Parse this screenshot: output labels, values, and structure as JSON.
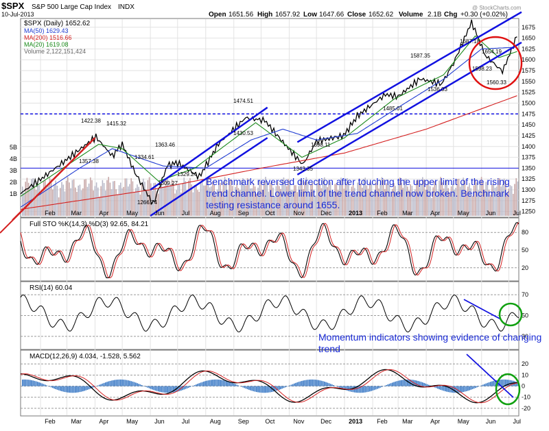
{
  "header": {
    "symbol": "$SPX",
    "name": "S&P 500 Large Cap Index",
    "exchange": "INDX",
    "date": "10-Jul-2013",
    "open_label": "Open",
    "open": "1651.56",
    "high_label": "High",
    "high": "1657.92",
    "low_label": "Low",
    "low": "1647.66",
    "close_label": "Close",
    "close": "1652.62",
    "volume_label": "Volume",
    "volume": "2.1B",
    "chg_label": "Chg",
    "chg": "+0.30 (+0.02%)",
    "watermark": "@ StockCharts.com"
  },
  "legend": {
    "main": "$SPX (Daily) 1652.62",
    "ma50": "MA(50) 1629.43",
    "ma200": "MA(200) 1516.66",
    "ma20": "MA(20) 1619.08",
    "volume": "Volume 2,122,151,424"
  },
  "annotations": {
    "benchmark": "Benchmark reversed direction after touching the upper limit of the rising trend channel. Lower limit of the trend channel now broken.   Benchmark testing resistance around 1655.",
    "momentum": "Momentum indicators showing evidence of changing trend"
  },
  "colors": {
    "price": "#000000",
    "ma50": "#1f3bd1",
    "ma200": "#d42020",
    "ma20": "#1a8a1a",
    "trend": "#1111e0",
    "circle_red": "#e01010",
    "circle_green": "#10a010",
    "vol_up": "#c8a8a8",
    "vol_down": "#b8b8c8",
    "grid": "#e2e2e2",
    "macd_hist": "#3b7ac6"
  },
  "chart_data": [
    {
      "type": "line",
      "title": "$SPX (Daily) 1652.62",
      "x_ticks": [
        "Feb",
        "Mar",
        "Apr",
        "May",
        "Jun",
        "Jul",
        "Aug",
        "Sep",
        "Oct",
        "Nov",
        "Dec",
        "2013",
        "Feb",
        "Mar",
        "Apr",
        "May",
        "Jun",
        "Jul"
      ],
      "y_ticks": [
        1250,
        1275,
        1300,
        1325,
        1350,
        1375,
        1400,
        1425,
        1450,
        1475,
        1500,
        1525,
        1550,
        1575,
        1600,
        1625,
        1650,
        1675
      ],
      "ylim": [
        1240,
        1692
      ],
      "volume_ticks": [
        "1B",
        "2B",
        "3B",
        "4B",
        "5B"
      ],
      "price_labels": [
        "1422.38",
        "1415.32",
        "1357.38",
        "1334.61",
        "1363.46",
        "1309.27",
        "1266.74",
        "1329.24",
        "1474.51",
        "1430.53",
        "1343.35",
        "1398.11",
        "1485.01",
        "1587.35",
        "1536.03",
        "1687.18",
        "1654.19",
        "1598.23",
        "1560.33"
      ],
      "series": [
        {
          "name": "$SPX",
          "dates": [
            "2012-01-10",
            "2012-02-01",
            "2012-03-01",
            "2012-04-02",
            "2012-04-20",
            "2012-05-01",
            "2012-05-15",
            "2012-06-04",
            "2012-06-20",
            "2012-07-01",
            "2012-07-25",
            "2012-08-15",
            "2012-09-14",
            "2012-10-05",
            "2012-10-25",
            "2012-11-16",
            "2012-12-01",
            "2012-12-31",
            "2013-01-15",
            "2013-02-15",
            "2013-03-01",
            "2013-03-25",
            "2013-04-18",
            "2013-05-01",
            "2013-05-21",
            "2013-06-05",
            "2013-06-24",
            "2013-07-10"
          ],
          "values": [
            1292,
            1324,
            1370,
            1422,
            1378,
            1406,
            1340,
            1267,
            1357,
            1362,
            1330,
            1406,
            1466,
            1460,
            1410,
            1358,
            1412,
            1425,
            1470,
            1520,
            1515,
            1556,
            1544,
            1592,
            1687,
            1610,
            1573,
            1653
          ]
        },
        {
          "name": "MA(50)",
          "dates": [
            "2012-01-10",
            "2012-03-15",
            "2012-04-20",
            "2012-06-15",
            "2012-08-01",
            "2012-09-20",
            "2012-10-25",
            "2012-12-01",
            "2013-01-15",
            "2013-03-01",
            "2013-04-20",
            "2013-06-01",
            "2013-07-10"
          ],
          "values": [
            1260,
            1350,
            1395,
            1355,
            1350,
            1415,
            1440,
            1415,
            1430,
            1490,
            1555,
            1625,
            1629
          ]
        },
        {
          "name": "MA(200)",
          "dates": [
            "2012-01-10",
            "2012-06-01",
            "2012-10-01",
            "2013-01-01",
            "2013-04-01",
            "2013-07-10"
          ],
          "values": [
            1255,
            1300,
            1350,
            1385,
            1440,
            1517
          ]
        },
        {
          "name": "MA(20)",
          "dates": [
            "2012-01-10",
            "2012-04-05",
            "2012-05-01",
            "2012-06-10",
            "2012-07-20",
            "2012-09-25",
            "2012-11-15",
            "2013-01-01",
            "2013-02-25",
            "2013-04-20",
            "2013-05-25",
            "2013-06-20",
            "2013-07-10"
          ],
          "values": [
            1285,
            1405,
            1395,
            1320,
            1350,
            1455,
            1375,
            1420,
            1510,
            1565,
            1655,
            1605,
            1619
          ]
        }
      ],
      "trend_channels": [
        {
          "from": [
            "2012-01-01",
            1230
          ],
          "to": [
            "2012-04-01",
            1420
          ]
        },
        {
          "from": [
            "2012-06-01",
            1300
          ],
          "to": [
            "2012-10-08",
            1490
          ]
        },
        {
          "from": [
            "2012-06-01",
            1240
          ],
          "to": [
            "2012-10-08",
            1420
          ]
        },
        {
          "from": [
            "2012-11-10",
            1410
          ],
          "to": [
            "2013-07-15",
            1710
          ]
        },
        {
          "from": [
            "2012-11-10",
            1335
          ],
          "to": [
            "2013-07-15",
            1640
          ]
        }
      ],
      "resistance_level": 1475,
      "support_level": 1350
    },
    {
      "type": "line",
      "title": "Full STO %K(14,3) %D(3) 92.65, 84.21",
      "y_ticks": [
        20,
        50,
        80
      ],
      "ylim": [
        0,
        100
      ],
      "series": [
        {
          "name": "%K",
          "values": [
            92.65
          ]
        },
        {
          "name": "%D",
          "values": [
            84.21
          ]
        }
      ]
    },
    {
      "type": "line",
      "title": "RSI(14) 60.04",
      "y_ticks": [
        30,
        50,
        70
      ],
      "ylim": [
        20,
        80
      ],
      "series": [
        {
          "name": "RSI(14)",
          "values": [
            60.04
          ]
        }
      ]
    },
    {
      "type": "line",
      "title": "MACD(12,26,9) 4.034, -1.528, 5.562",
      "y_ticks": [
        -20,
        -10,
        0,
        10,
        20
      ],
      "ylim": [
        -25,
        30
      ],
      "series": [
        {
          "name": "MACD",
          "values": [
            4.034
          ]
        },
        {
          "name": "Signal",
          "values": [
            -1.528
          ]
        },
        {
          "name": "Histogram",
          "values": [
            5.562
          ]
        }
      ]
    }
  ]
}
